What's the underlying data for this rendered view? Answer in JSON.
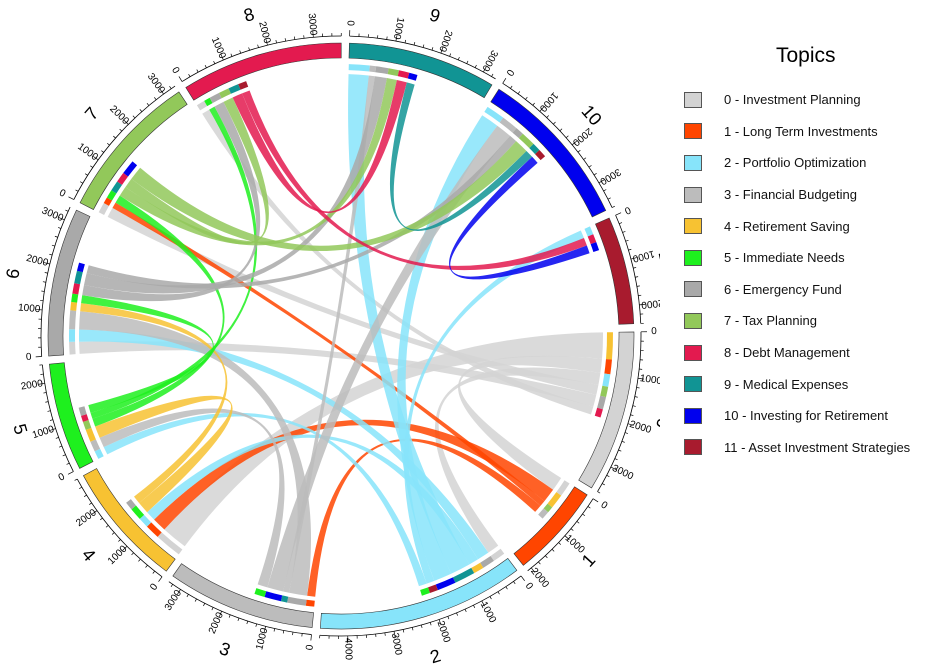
{
  "chart_data": {
    "type": "chord",
    "legend_title": "Topics",
    "sectors": [
      {
        "id": "0",
        "label": "0 - Investment Planning",
        "color": "#d3d3d3",
        "total": 3600,
        "ticks": [
          0,
          1000,
          2000,
          3000
        ]
      },
      {
        "id": "1",
        "label": "1 - Long Term Investments",
        "color": "#ff4500",
        "total": 2100,
        "ticks": [
          0,
          1000,
          2000
        ]
      },
      {
        "id": "2",
        "label": "2 - Portfolio Optimization",
        "color": "#87e4fa",
        "total": 4600,
        "ticks": [
          0,
          1000,
          2000,
          3000,
          4000
        ]
      },
      {
        "id": "3",
        "label": "3 - Financial Budgeting",
        "color": "#bcbcbc",
        "total": 3300,
        "ticks": [
          0,
          1000,
          2000,
          3000
        ]
      },
      {
        "id": "4",
        "label": "4 - Retirement Saving",
        "color": "#f7c232",
        "total": 2800,
        "ticks": [
          0,
          1000,
          2000
        ]
      },
      {
        "id": "5",
        "label": "5 - Immediate Needs",
        "color": "#1ef01e",
        "total": 2400,
        "ticks": [
          0,
          1000,
          2000
        ]
      },
      {
        "id": "6",
        "label": "6 - Emergency Fund",
        "color": "#a9a9a9",
        "total": 3300,
        "ticks": [
          0,
          1000,
          2000,
          3000
        ]
      },
      {
        "id": "7",
        "label": "7 - Tax Planning",
        "color": "#92c85a",
        "total": 3300,
        "ticks": [
          0,
          1000,
          2000,
          3000
        ]
      },
      {
        "id": "8",
        "label": "8 - Debt Management",
        "color": "#e31a4f",
        "total": 3600,
        "ticks": [
          0,
          1000,
          2000,
          3000
        ]
      },
      {
        "id": "9",
        "label": "9 - Medical Expenses",
        "color": "#119494",
        "total": 3300,
        "ticks": [
          0,
          1000,
          2000,
          3000
        ]
      },
      {
        "id": "10",
        "label": "10 - Investing for Retirement",
        "color": "#0000ee",
        "total": 3600,
        "ticks": [
          0,
          1000,
          2000,
          3000
        ]
      },
      {
        "id": "11",
        "label": "11 - Asset Investment Strategies",
        "color": "#a81b2e",
        "total": 2400,
        "ticks": [
          0,
          1000,
          2000
        ]
      }
    ],
    "chords": [
      {
        "from": "0",
        "to": "4",
        "value": 650
      },
      {
        "from": "0",
        "to": "1",
        "value": 350
      },
      {
        "from": "0",
        "to": "2",
        "value": 300
      },
      {
        "from": "0",
        "to": "7",
        "value": 250
      },
      {
        "from": "0",
        "to": "6",
        "value": 300
      },
      {
        "from": "0",
        "to": "8",
        "value": 200
      },
      {
        "from": "1",
        "to": "4",
        "value": 350
      },
      {
        "from": "1",
        "to": "7",
        "value": 150
      },
      {
        "from": "1",
        "to": "3",
        "value": 200
      },
      {
        "from": "2",
        "to": "6",
        "value": 300
      },
      {
        "from": "2",
        "to": "4",
        "value": 250
      },
      {
        "from": "2",
        "to": "9",
        "value": 500
      },
      {
        "from": "2",
        "to": "10",
        "value": 450
      },
      {
        "from": "2",
        "to": "11",
        "value": 200
      },
      {
        "from": "2",
        "to": "5",
        "value": 200
      },
      {
        "from": "3",
        "to": "6",
        "value": 450
      },
      {
        "from": "3",
        "to": "9",
        "value": 150
      },
      {
        "from": "3",
        "to": "10",
        "value": 400
      },
      {
        "from": "3",
        "to": "5",
        "value": 250
      },
      {
        "from": "4",
        "to": "5",
        "value": 300
      },
      {
        "from": "4",
        "to": "6",
        "value": 200
      },
      {
        "from": "5",
        "to": "7",
        "value": 200
      },
      {
        "from": "5",
        "to": "8",
        "value": 150
      },
      {
        "from": "5",
        "to": "6",
        "value": 200
      },
      {
        "from": "6",
        "to": "8",
        "value": 250
      },
      {
        "from": "6",
        "to": "9",
        "value": 300
      },
      {
        "from": "6",
        "to": "10",
        "value": 200
      },
      {
        "from": "7",
        "to": "9",
        "value": 250
      },
      {
        "from": "7",
        "to": "8",
        "value": 250
      },
      {
        "from": "7",
        "to": "10",
        "value": 350
      },
      {
        "from": "8",
        "to": "9",
        "value": 250
      },
      {
        "from": "8",
        "to": "11",
        "value": 200
      },
      {
        "from": "9",
        "to": "10",
        "value": 200
      },
      {
        "from": "10",
        "to": "11",
        "value": 200
      }
    ]
  }
}
